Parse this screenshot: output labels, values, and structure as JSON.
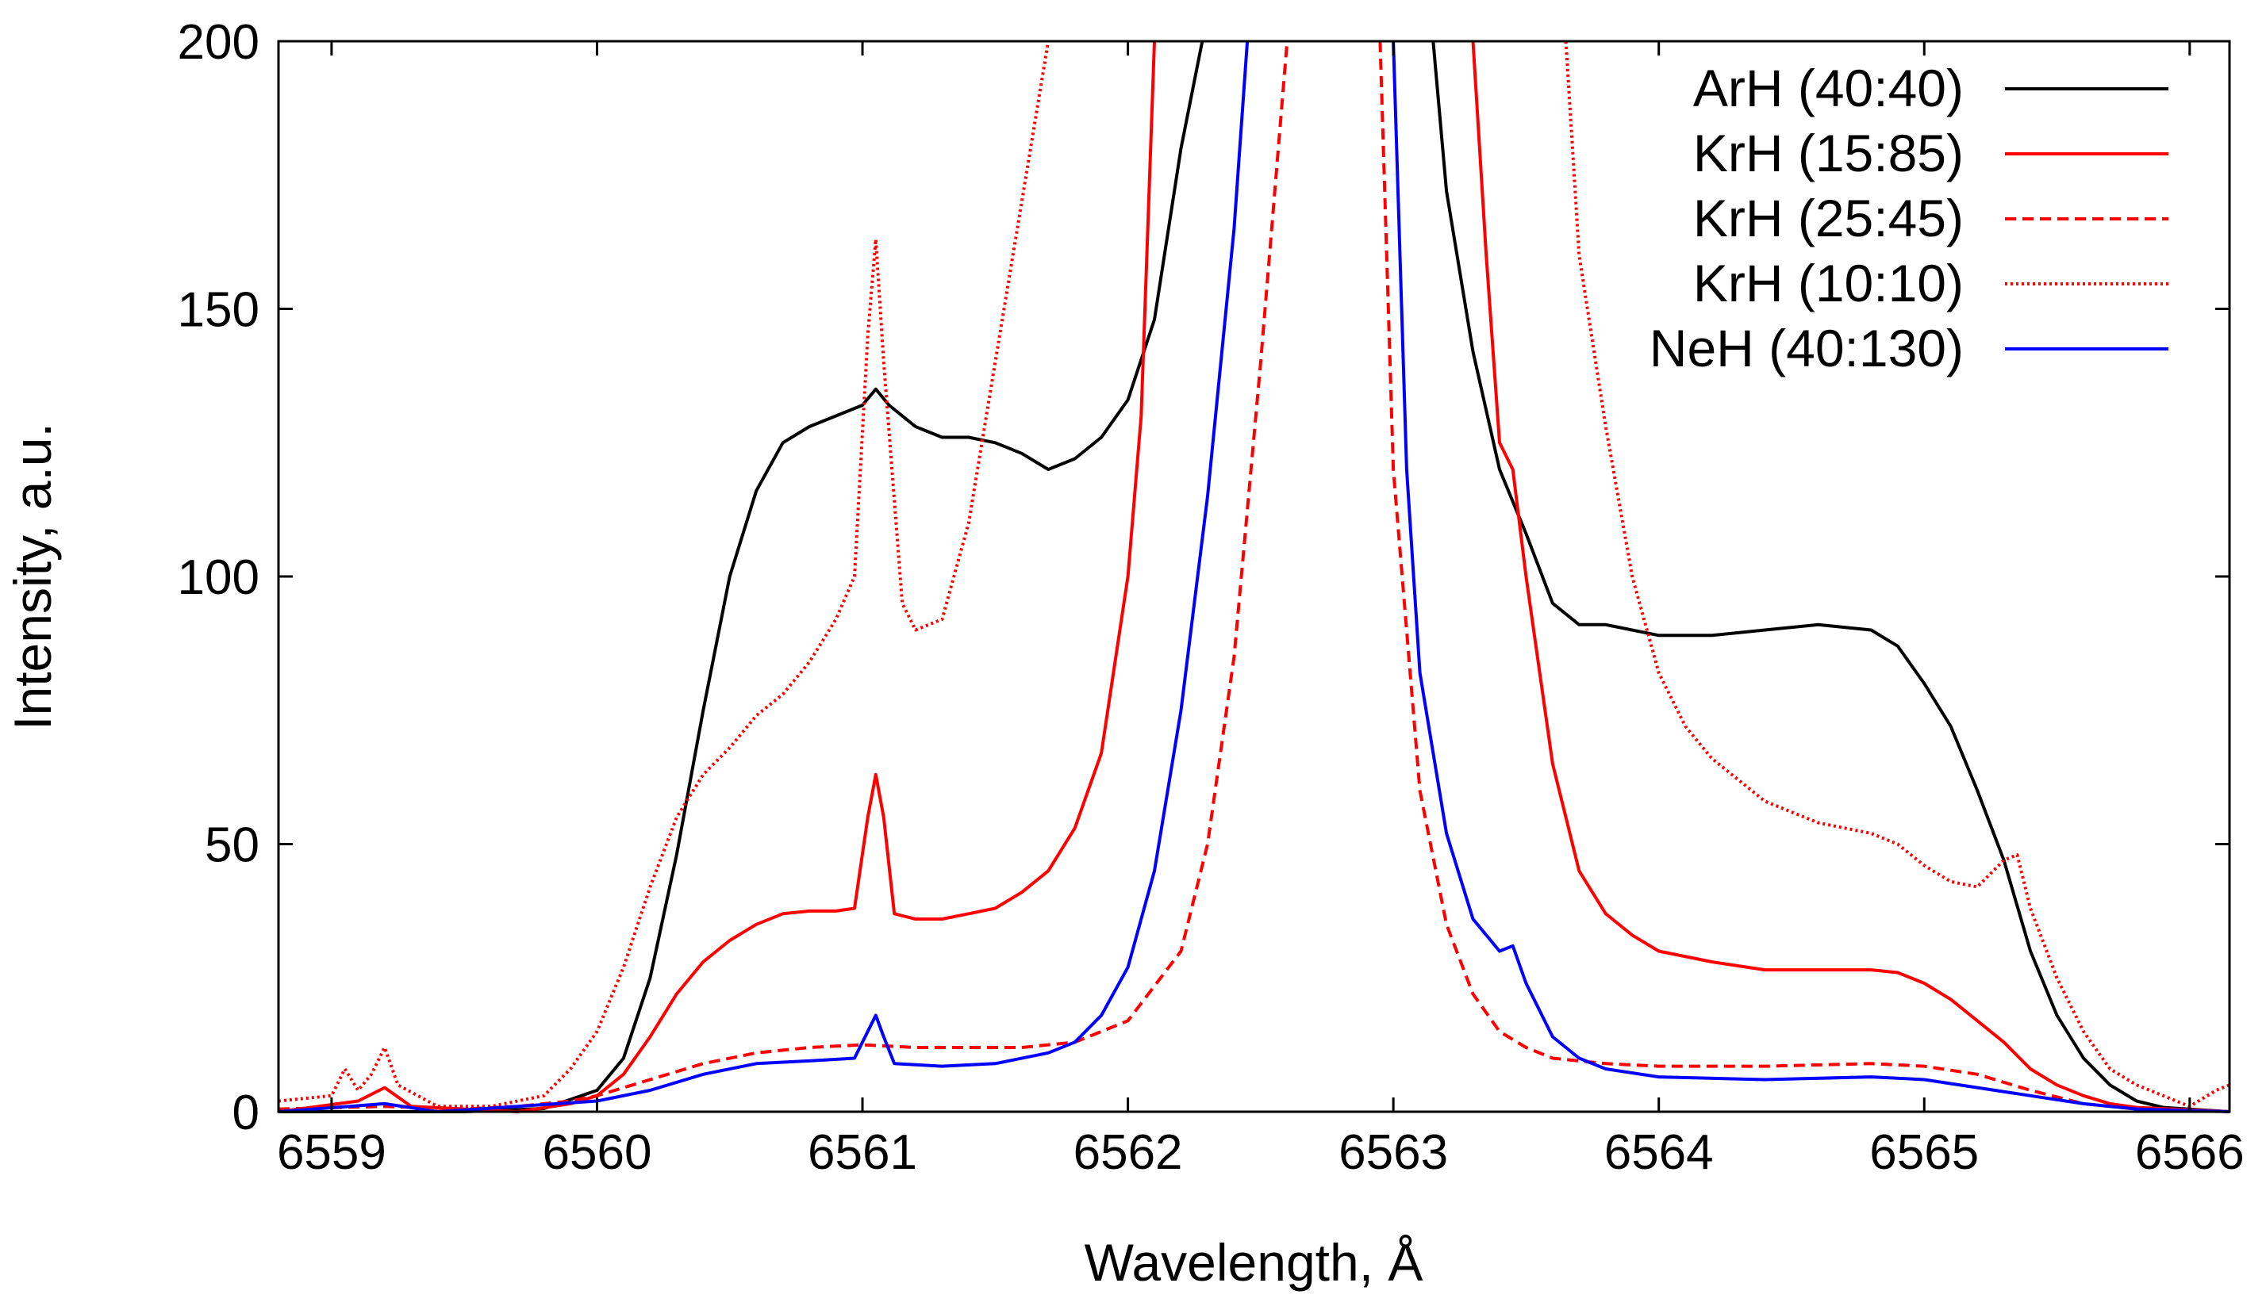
{
  "chart_data": {
    "type": "line",
    "title": "",
    "xlabel": "Wavelength, Å",
    "ylabel": "Intensity, a.u.",
    "xlim": [
      6558.8,
      6566.15
    ],
    "ylim": [
      0,
      200
    ],
    "grid": false,
    "legend_position": "top-right",
    "x_ticks": [
      6559,
      6560,
      6561,
      6562,
      6563,
      6564,
      6565,
      6566
    ],
    "x_tick_labels": [
      "6559",
      "6560",
      "6561",
      "6562",
      "6563",
      "6564",
      "6565",
      "6566"
    ],
    "y_ticks": [
      0,
      50,
      100,
      150,
      200
    ],
    "y_tick_labels": [
      "0",
      "50",
      "100",
      "150",
      "200"
    ],
    "series": [
      {
        "name": "ArH (40:40)",
        "color": "#000000",
        "dash": "solid",
        "points": [
          [
            6558.8,
            0
          ],
          [
            6559.5,
            0
          ],
          [
            6559.8,
            0.6
          ],
          [
            6560,
            4
          ],
          [
            6560.1,
            10
          ],
          [
            6560.2,
            25
          ],
          [
            6560.3,
            48
          ],
          [
            6560.4,
            75
          ],
          [
            6560.5,
            100
          ],
          [
            6560.6,
            116
          ],
          [
            6560.7,
            125
          ],
          [
            6560.8,
            128
          ],
          [
            6560.9,
            130
          ],
          [
            6561.0,
            132
          ],
          [
            6561.05,
            135
          ],
          [
            6561.1,
            132
          ],
          [
            6561.2,
            128
          ],
          [
            6561.3,
            126
          ],
          [
            6561.4,
            126
          ],
          [
            6561.5,
            125
          ],
          [
            6561.6,
            123
          ],
          [
            6561.7,
            120
          ],
          [
            6561.8,
            122
          ],
          [
            6561.9,
            126
          ],
          [
            6562.0,
            133
          ],
          [
            6562.1,
            148
          ],
          [
            6562.2,
            180
          ],
          [
            6562.28,
            200
          ]
        ]
      },
      {
        "name": "ArH (40:40)",
        "color": "#000000",
        "dash": "solid",
        "points": [
          [
            6563.15,
            200
          ],
          [
            6563.2,
            172
          ],
          [
            6563.3,
            142
          ],
          [
            6563.4,
            120
          ],
          [
            6563.5,
            108
          ],
          [
            6563.6,
            95
          ],
          [
            6563.7,
            91
          ],
          [
            6563.8,
            91
          ],
          [
            6564,
            89
          ],
          [
            6564.2,
            89
          ],
          [
            6564.4,
            90
          ],
          [
            6564.6,
            91
          ],
          [
            6564.8,
            90
          ],
          [
            6564.9,
            87
          ],
          [
            6565,
            80
          ],
          [
            6565.1,
            72
          ],
          [
            6565.2,
            60
          ],
          [
            6565.3,
            47
          ],
          [
            6565.4,
            30
          ],
          [
            6565.5,
            18
          ],
          [
            6565.6,
            10
          ],
          [
            6565.7,
            5
          ],
          [
            6565.8,
            2
          ],
          [
            6565.9,
            0.8
          ],
          [
            6566.15,
            0
          ]
        ]
      },
      {
        "name": "KrH (15:85)",
        "color": "#ff0000",
        "dash": "solid",
        "points": [
          [
            6558.8,
            0
          ],
          [
            6559.1,
            2
          ],
          [
            6559.2,
            4.5
          ],
          [
            6559.3,
            1
          ],
          [
            6559.7,
            0
          ],
          [
            6559.9,
            1.5
          ],
          [
            6560,
            3
          ],
          [
            6560.1,
            7
          ],
          [
            6560.2,
            14
          ],
          [
            6560.3,
            22
          ],
          [
            6560.4,
            28
          ],
          [
            6560.5,
            32
          ],
          [
            6560.6,
            35
          ],
          [
            6560.7,
            37
          ],
          [
            6560.8,
            37.5
          ],
          [
            6560.9,
            37.5
          ],
          [
            6560.97,
            38
          ],
          [
            6561.02,
            55
          ],
          [
            6561.05,
            63
          ],
          [
            6561.08,
            55
          ],
          [
            6561.12,
            37
          ],
          [
            6561.2,
            36
          ],
          [
            6561.3,
            36
          ],
          [
            6561.4,
            37
          ],
          [
            6561.5,
            38
          ],
          [
            6561.6,
            41
          ],
          [
            6561.7,
            45
          ],
          [
            6561.8,
            53
          ],
          [
            6561.9,
            67
          ],
          [
            6562.0,
            100
          ],
          [
            6562.05,
            130
          ],
          [
            6562.1,
            200
          ]
        ]
      },
      {
        "name": "KrH (15:85)",
        "color": "#ff0000",
        "dash": "solid",
        "points": [
          [
            6563.3,
            200
          ],
          [
            6563.35,
            160
          ],
          [
            6563.4,
            125
          ],
          [
            6563.45,
            120
          ],
          [
            6563.5,
            100
          ],
          [
            6563.6,
            65
          ],
          [
            6563.7,
            45
          ],
          [
            6563.8,
            37
          ],
          [
            6563.9,
            33
          ],
          [
            6564,
            30
          ],
          [
            6564.2,
            28
          ],
          [
            6564.4,
            26.5
          ],
          [
            6564.6,
            26.5
          ],
          [
            6564.8,
            26.5
          ],
          [
            6564.9,
            26
          ],
          [
            6565,
            24
          ],
          [
            6565.1,
            21
          ],
          [
            6565.2,
            17
          ],
          [
            6565.3,
            13
          ],
          [
            6565.4,
            8
          ],
          [
            6565.5,
            5
          ],
          [
            6565.6,
            3
          ],
          [
            6565.7,
            1.5
          ],
          [
            6565.8,
            0.8
          ],
          [
            6566.15,
            0
          ]
        ]
      },
      {
        "name": "KrH (25:45)",
        "color": "#ff0000",
        "dash": "dashed",
        "points": [
          [
            6558.8,
            0.5
          ],
          [
            6559.2,
            1
          ],
          [
            6559.5,
            0.5
          ],
          [
            6559.7,
            1
          ],
          [
            6559.9,
            2
          ],
          [
            6560,
            3
          ],
          [
            6560.2,
            6
          ],
          [
            6560.4,
            9
          ],
          [
            6560.6,
            11
          ],
          [
            6560.8,
            12
          ],
          [
            6561.0,
            12.5
          ],
          [
            6561.2,
            12
          ],
          [
            6561.4,
            12
          ],
          [
            6561.6,
            12
          ],
          [
            6561.8,
            13
          ],
          [
            6562.0,
            17
          ],
          [
            6562.2,
            30
          ],
          [
            6562.3,
            50
          ],
          [
            6562.4,
            85
          ],
          [
            6562.5,
            140
          ],
          [
            6562.6,
            200
          ]
        ]
      },
      {
        "name": "KrH (25:45)",
        "color": "#ff0000",
        "dash": "dashed",
        "points": [
          [
            6562.95,
            200
          ],
          [
            6563.0,
            120
          ],
          [
            6563.1,
            60
          ],
          [
            6563.2,
            35
          ],
          [
            6563.3,
            22
          ],
          [
            6563.4,
            15
          ],
          [
            6563.5,
            12
          ],
          [
            6563.6,
            10
          ],
          [
            6563.8,
            9
          ],
          [
            6564,
            8.5
          ],
          [
            6564.4,
            8.5
          ],
          [
            6564.8,
            9
          ],
          [
            6565,
            8.5
          ],
          [
            6565.2,
            7
          ],
          [
            6565.4,
            4
          ],
          [
            6565.6,
            1.5
          ],
          [
            6565.8,
            0.5
          ],
          [
            6566.15,
            0
          ]
        ]
      },
      {
        "name": "KrH (10:10)",
        "color": "#ff0000",
        "dash": "dotted",
        "points": [
          [
            6558.8,
            2
          ],
          [
            6559.0,
            3
          ],
          [
            6559.05,
            8
          ],
          [
            6559.1,
            4
          ],
          [
            6559.15,
            7
          ],
          [
            6559.2,
            12
          ],
          [
            6559.25,
            5
          ],
          [
            6559.4,
            1
          ],
          [
            6559.6,
            1
          ],
          [
            6559.8,
            3
          ],
          [
            6559.9,
            8
          ],
          [
            6560,
            15
          ],
          [
            6560.1,
            27
          ],
          [
            6560.2,
            42
          ],
          [
            6560.3,
            55
          ],
          [
            6560.4,
            63
          ],
          [
            6560.5,
            68
          ],
          [
            6560.6,
            74
          ],
          [
            6560.7,
            78
          ],
          [
            6560.8,
            84
          ],
          [
            6560.9,
            92
          ],
          [
            6560.97,
            100
          ],
          [
            6561.02,
            145
          ],
          [
            6561.05,
            163
          ],
          [
            6561.08,
            140
          ],
          [
            6561.15,
            95
          ],
          [
            6561.2,
            90
          ],
          [
            6561.3,
            92
          ],
          [
            6561.4,
            110
          ],
          [
            6561.5,
            140
          ],
          [
            6561.6,
            170
          ],
          [
            6561.7,
            200
          ]
        ]
      },
      {
        "name": "KrH (10:10)",
        "color": "#ff0000",
        "dash": "dotted",
        "points": [
          [
            6563.65,
            200
          ],
          [
            6563.7,
            160
          ],
          [
            6563.8,
            128
          ],
          [
            6563.9,
            100
          ],
          [
            6564,
            82
          ],
          [
            6564.1,
            72
          ],
          [
            6564.2,
            66
          ],
          [
            6564.3,
            62
          ],
          [
            6564.4,
            58
          ],
          [
            6564.6,
            54
          ],
          [
            6564.8,
            52
          ],
          [
            6564.9,
            50
          ],
          [
            6565,
            46
          ],
          [
            6565.1,
            43
          ],
          [
            6565.2,
            42
          ],
          [
            6565.3,
            47
          ],
          [
            6565.35,
            48
          ],
          [
            6565.4,
            38
          ],
          [
            6565.5,
            25
          ],
          [
            6565.6,
            15
          ],
          [
            6565.7,
            8
          ],
          [
            6565.8,
            5
          ],
          [
            6565.9,
            3
          ],
          [
            6566,
            1
          ],
          [
            6566.1,
            4
          ],
          [
            6566.15,
            5
          ]
        ]
      },
      {
        "name": "NeH (40:130)",
        "color": "#0000ff",
        "dash": "solid",
        "points": [
          [
            6558.8,
            0
          ],
          [
            6559.2,
            1.5
          ],
          [
            6559.4,
            0
          ],
          [
            6560,
            2
          ],
          [
            6560.2,
            4
          ],
          [
            6560.4,
            7
          ],
          [
            6560.6,
            9
          ],
          [
            6560.8,
            9.5
          ],
          [
            6560.97,
            10
          ],
          [
            6561.02,
            15
          ],
          [
            6561.05,
            18
          ],
          [
            6561.08,
            14
          ],
          [
            6561.12,
            9
          ],
          [
            6561.3,
            8.5
          ],
          [
            6561.5,
            9
          ],
          [
            6561.7,
            11
          ],
          [
            6561.8,
            13
          ],
          [
            6561.9,
            18
          ],
          [
            6562.0,
            27
          ],
          [
            6562.1,
            45
          ],
          [
            6562.2,
            75
          ],
          [
            6562.3,
            115
          ],
          [
            6562.4,
            165
          ],
          [
            6562.45,
            200
          ]
        ]
      },
      {
        "name": "NeH (40:130)",
        "color": "#0000ff",
        "dash": "solid",
        "points": [
          [
            6563.0,
            200
          ],
          [
            6563.05,
            120
          ],
          [
            6563.1,
            82
          ],
          [
            6563.2,
            52
          ],
          [
            6563.3,
            36
          ],
          [
            6563.4,
            30
          ],
          [
            6563.45,
            31
          ],
          [
            6563.5,
            24
          ],
          [
            6563.6,
            14
          ],
          [
            6563.7,
            10
          ],
          [
            6563.8,
            8
          ],
          [
            6564,
            6.5
          ],
          [
            6564.4,
            6
          ],
          [
            6564.8,
            6.5
          ],
          [
            6565,
            6
          ],
          [
            6565.2,
            4.5
          ],
          [
            6565.4,
            3
          ],
          [
            6565.6,
            1.5
          ],
          [
            6565.8,
            0.5
          ],
          [
            6566.15,
            0
          ]
        ]
      }
    ]
  }
}
